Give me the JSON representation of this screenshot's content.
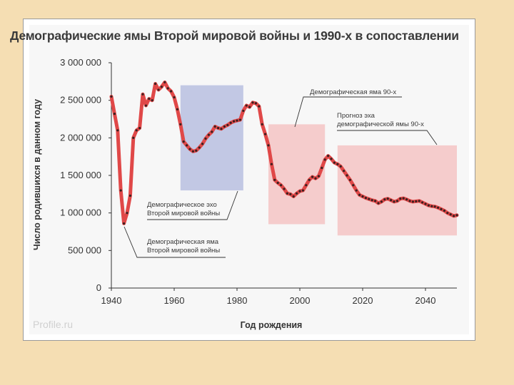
{
  "title": "Демографические ямы Второй мировой войны и 1990-х в сопоставлении",
  "watermark": "Profile.ru",
  "colors": {
    "background": "#f5deb3",
    "line": "#e04848",
    "dots": "#3a2020",
    "blue_region": "#b9bfe0",
    "red_region": "#f4c4c4"
  },
  "chart_data": {
    "type": "line",
    "xlabel": "Год рождения",
    "ylabel": "Число родившихся в данном году",
    "xlim": [
      1940,
      2050
    ],
    "ylim": [
      0,
      3000000
    ],
    "x_ticks": [
      "1940",
      "1960",
      "1980",
      "2000",
      "2020",
      "2040"
    ],
    "y_ticks": [
      "0",
      "500 000",
      "1 000 000",
      "1 500 000",
      "2 000 000",
      "2 500 000",
      "3 000 000"
    ],
    "series": [
      {
        "x": [
          1940,
          1941,
          1942,
          1943,
          1944,
          1945,
          1946,
          1947,
          1948,
          1949,
          1950,
          1951,
          1952,
          1953,
          1954,
          1955,
          1956,
          1957,
          1958,
          1959,
          1960,
          1961,
          1962,
          1963,
          1964,
          1965,
          1966,
          1967,
          1968,
          1969,
          1970,
          1971,
          1972,
          1973,
          1974,
          1975,
          1976,
          1977,
          1978,
          1979,
          1980,
          1981,
          1982,
          1983,
          1984,
          1985,
          1986,
          1987,
          1988,
          1989,
          1990,
          1991,
          1992,
          1993,
          1994,
          1995,
          1996,
          1997,
          1998,
          1999,
          2000,
          2001,
          2002,
          2003,
          2004,
          2005,
          2006,
          2007,
          2008,
          2009,
          2010,
          2011,
          2012,
          2013,
          2014,
          2015,
          2016,
          2017,
          2018,
          2019,
          2020,
          2021,
          2022,
          2023,
          2024,
          2025,
          2026,
          2027,
          2028,
          2029,
          2030,
          2031,
          2032,
          2033,
          2034,
          2035,
          2036,
          2037,
          2038,
          2039,
          2040,
          2041,
          2042,
          2043,
          2044,
          2045,
          2046,
          2047,
          2048,
          2049,
          2050
        ],
        "y": [
          2550000,
          2320000,
          2100000,
          1300000,
          860000,
          1000000,
          1230000,
          2000000,
          2100000,
          2130000,
          2580000,
          2430000,
          2520000,
          2500000,
          2720000,
          2640000,
          2680000,
          2740000,
          2660000,
          2620000,
          2540000,
          2380000,
          2180000,
          1950000,
          1900000,
          1850000,
          1820000,
          1830000,
          1870000,
          1920000,
          1990000,
          2040000,
          2080000,
          2150000,
          2130000,
          2120000,
          2150000,
          2170000,
          2200000,
          2220000,
          2230000,
          2240000,
          2360000,
          2430000,
          2410000,
          2470000,
          2460000,
          2420000,
          2180000,
          2050000,
          1900000,
          1650000,
          1440000,
          1400000,
          1370000,
          1320000,
          1260000,
          1250000,
          1220000,
          1260000,
          1290000,
          1300000,
          1370000,
          1440000,
          1480000,
          1460000,
          1490000,
          1600000,
          1710000,
          1760000,
          1720000,
          1670000,
          1650000,
          1620000,
          1560000,
          1500000,
          1440000,
          1370000,
          1300000,
          1240000,
          1220000,
          1200000,
          1185000,
          1170000,
          1160000,
          1130000,
          1150000,
          1180000,
          1190000,
          1170000,
          1150000,
          1160000,
          1190000,
          1195000,
          1180000,
          1160000,
          1150000,
          1155000,
          1160000,
          1140000,
          1120000,
          1100000,
          1090000,
          1085000,
          1070000,
          1050000,
          1030000,
          1000000,
          980000,
          960000,
          970000
        ]
      }
    ],
    "regions": [
      {
        "name": "blue",
        "x": [
          1962,
          1982
        ],
        "y": [
          1300000,
          2700000
        ]
      },
      {
        "name": "red-90s",
        "x": [
          1990,
          2008
        ],
        "y": [
          850000,
          2180000
        ]
      },
      {
        "name": "forecast",
        "x": [
          2012,
          2050
        ],
        "y": [
          700000,
          1900000
        ]
      }
    ],
    "annotations": [
      {
        "id": "echo",
        "lines": [
          "Демографическое эхо",
          "Второй мировой войны"
        ]
      },
      {
        "id": "pit",
        "lines": [
          "Демографическая яма",
          "Второй мировой войны"
        ]
      },
      {
        "id": "pit90",
        "lines": [
          "Демографическая яма 90-х"
        ]
      },
      {
        "id": "forecast",
        "lines": [
          "Прогноз эха",
          "демографической ямы 90-х"
        ]
      }
    ]
  }
}
